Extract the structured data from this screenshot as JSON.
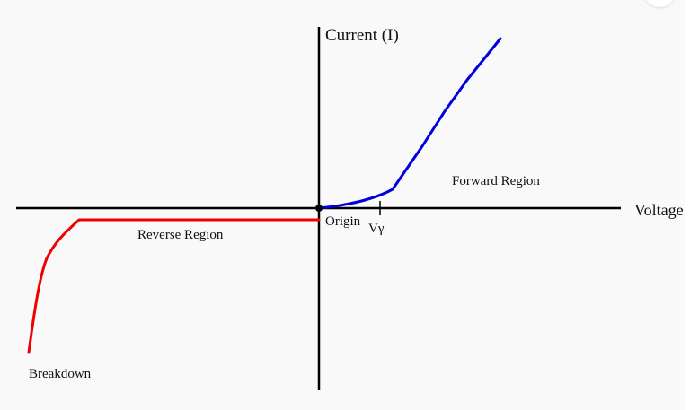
{
  "diagram": {
    "y_axis_label": "Current (I)",
    "x_axis_label": "Voltage",
    "origin_label": "Origin",
    "threshold_label": "Vγ",
    "forward_label": "Forward Region",
    "reverse_label": "Reverse Region",
    "breakdown_label": "Breakdown",
    "colors": {
      "axis": "#000000",
      "forward_curve": "#0000dd",
      "reverse_curve": "#ee0000",
      "background": "#f9f9f9"
    }
  }
}
